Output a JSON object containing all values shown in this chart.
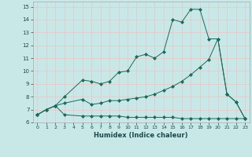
{
  "xlabel": "Humidex (Indice chaleur)",
  "background_color": "#c8e8e8",
  "grid_color": "#e8c8c8",
  "line_color": "#1a6b5a",
  "xlim": [
    -0.5,
    23.5
  ],
  "ylim": [
    6,
    15.4
  ],
  "xticks": [
    0,
    1,
    2,
    3,
    4,
    5,
    6,
    7,
    8,
    9,
    10,
    11,
    12,
    13,
    14,
    15,
    16,
    17,
    18,
    19,
    20,
    21,
    22,
    23
  ],
  "yticks": [
    6,
    7,
    8,
    9,
    10,
    11,
    12,
    13,
    14,
    15
  ],
  "series1_x": [
    0,
    1,
    2,
    3,
    5,
    6,
    7,
    8,
    9,
    10,
    11,
    12,
    13,
    14,
    15,
    16,
    17,
    18,
    19,
    20,
    21,
    22,
    23
  ],
  "series1_y": [
    6.6,
    7.0,
    7.3,
    6.6,
    6.5,
    6.5,
    6.5,
    6.5,
    6.5,
    6.4,
    6.4,
    6.4,
    6.4,
    6.4,
    6.4,
    6.3,
    6.3,
    6.3,
    6.3,
    6.3,
    6.3,
    6.3,
    6.3
  ],
  "series2_x": [
    0,
    1,
    2,
    3,
    5,
    6,
    7,
    8,
    9,
    10,
    11,
    12,
    13,
    14,
    15,
    16,
    17,
    18,
    19,
    20,
    21,
    22,
    23
  ],
  "series2_y": [
    6.6,
    7.0,
    7.3,
    7.5,
    7.8,
    7.4,
    7.5,
    7.7,
    7.7,
    7.8,
    7.9,
    8.0,
    8.2,
    8.5,
    8.8,
    9.2,
    9.7,
    10.3,
    10.9,
    12.5,
    8.2,
    7.6,
    6.3
  ],
  "series3_x": [
    0,
    1,
    2,
    3,
    5,
    6,
    7,
    8,
    9,
    10,
    11,
    12,
    13,
    14,
    15,
    16,
    17,
    18,
    19,
    20,
    21,
    22,
    23
  ],
  "series3_y": [
    6.6,
    7.0,
    7.3,
    8.0,
    9.3,
    9.2,
    9.0,
    9.2,
    9.9,
    10.0,
    11.1,
    11.3,
    11.0,
    11.5,
    14.0,
    13.8,
    14.8,
    14.8,
    12.5,
    12.5,
    8.2,
    7.6,
    6.3
  ]
}
